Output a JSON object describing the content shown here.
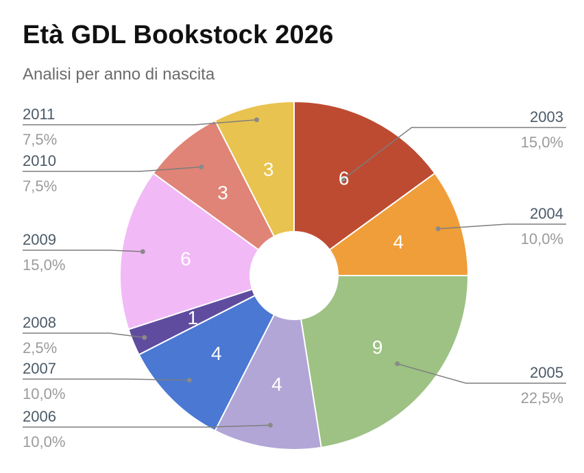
{
  "title": "Età GDL Bookstock 2026",
  "subtitle": "Analisi per anno di nascita",
  "chart_data": {
    "type": "pie",
    "donut": true,
    "slices": [
      {
        "label": "2003",
        "value": 6,
        "percent": "15,0%",
        "color": "#bd4b32",
        "side": "right"
      },
      {
        "label": "2004",
        "value": 4,
        "percent": "10,0%",
        "color": "#f09e3a",
        "side": "right"
      },
      {
        "label": "2005",
        "value": 9,
        "percent": "22,5%",
        "color": "#9dc284",
        "side": "right"
      },
      {
        "label": "2006",
        "value": 4,
        "percent": "10,0%",
        "color": "#b1a6d6",
        "side": "left"
      },
      {
        "label": "2007",
        "value": 4,
        "percent": "10,0%",
        "color": "#4a78d3",
        "side": "left"
      },
      {
        "label": "2008",
        "value": 1,
        "percent": "2,5%",
        "color": "#5f4c9e",
        "side": "left"
      },
      {
        "label": "2009",
        "value": 6,
        "percent": "15,0%",
        "color": "#f1b9f6",
        "side": "left"
      },
      {
        "label": "2010",
        "value": 3,
        "percent": "7,5%",
        "color": "#df8476",
        "side": "left"
      },
      {
        "label": "2011",
        "value": 3,
        "percent": "7,5%",
        "color": "#e9c34f",
        "side": "left"
      }
    ]
  }
}
